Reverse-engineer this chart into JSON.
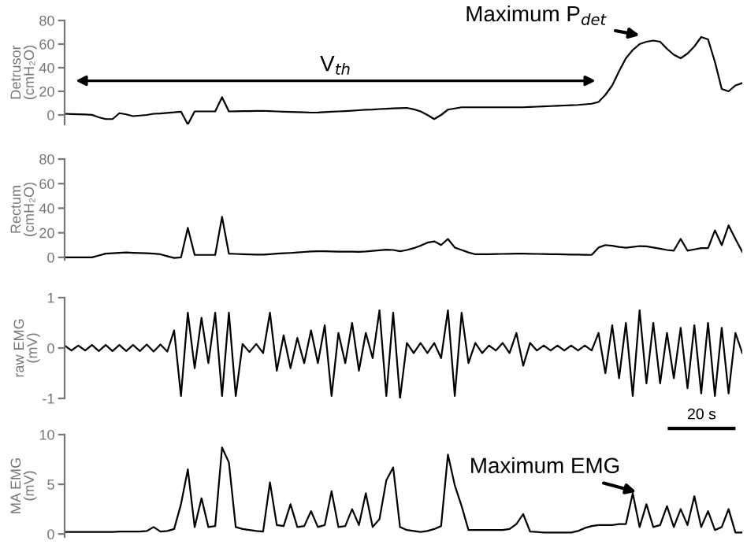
{
  "chart_data": [
    {
      "type": "line",
      "ylabel": "Detrusor\n(cmH₂O)",
      "ylim": [
        -8,
        80
      ],
      "yticks": [
        0,
        20,
        40,
        60,
        80
      ],
      "tick_labels": "y",
      "grid": false,
      "legend": false,
      "categories": [
        null,
        null,
        null,
        null,
        null,
        null,
        null,
        null,
        null,
        null,
        null,
        null,
        null,
        null,
        null,
        null,
        null,
        null,
        null,
        null,
        null,
        null,
        null,
        null,
        null,
        null,
        null,
        null,
        null,
        null,
        null,
        null,
        null,
        null,
        null,
        null,
        null,
        null,
        null,
        null,
        null,
        null,
        null,
        null,
        null,
        null,
        null,
        null,
        null,
        null,
        null,
        null,
        null,
        null,
        null,
        null,
        null,
        null,
        null,
        null,
        null,
        null,
        null,
        null,
        null,
        null,
        null,
        null,
        null,
        null,
        null,
        null,
        null,
        null,
        null,
        null,
        null,
        null,
        null,
        null,
        null,
        null,
        null,
        null,
        null,
        null,
        null,
        null,
        null,
        null,
        null,
        null,
        null,
        null,
        null,
        null,
        null,
        null,
        null,
        null
      ],
      "series": [
        {
          "color": "#000000",
          "values": [
            1,
            0.8,
            0.6,
            0.4,
            0.1,
            -2,
            -3.5,
            -3.5,
            1.5,
            0.5,
            -1,
            -0.5,
            0,
            1,
            1.2,
            1.8,
            2.2,
            2.8,
            -8,
            3,
            3,
            3,
            3,
            15,
            3,
            3.1,
            3.2,
            3.3,
            3.4,
            3.5,
            3.2,
            3,
            2.8,
            2.6,
            2.4,
            2.2,
            2,
            2.1,
            2.4,
            2.7,
            3,
            3.3,
            3.6,
            4,
            4.4,
            4.6,
            5,
            5.3,
            5.6,
            5.8,
            6,
            4.8,
            3,
            0,
            -3.5,
            0,
            4.5,
            5.5,
            6.5,
            6.5,
            6.5,
            6.5,
            6.5,
            6.5,
            6.5,
            6.5,
            6.5,
            6.5,
            6.7,
            7,
            7.3,
            7.5,
            7.8,
            8,
            8.3,
            8.5,
            9,
            9.5,
            11,
            17,
            25,
            37,
            48,
            55,
            60,
            62,
            63,
            62,
            56,
            51,
            48,
            52,
            58,
            66,
            64,
            45,
            22,
            20,
            25,
            27
          ]
        }
      ],
      "annotations": [
        "Maximum P$_{det}$",
        "V$_{th}$"
      ]
    },
    {
      "type": "line",
      "ylabel": "Rectum\n(cmH₂O)",
      "ylim": [
        -2,
        80
      ],
      "yticks": [
        0,
        20,
        40,
        60,
        80
      ],
      "tick_labels": "y",
      "grid": false,
      "legend": false,
      "categories": [
        null,
        null,
        null,
        null,
        null,
        null,
        null,
        null,
        null,
        null,
        null,
        null,
        null,
        null,
        null,
        null,
        null,
        null,
        null,
        null,
        null,
        null,
        null,
        null,
        null,
        null,
        null,
        null,
        null,
        null,
        null,
        null,
        null,
        null,
        null,
        null,
        null,
        null,
        null,
        null,
        null,
        null,
        null,
        null,
        null,
        null,
        null,
        null,
        null,
        null,
        null,
        null,
        null,
        null,
        null,
        null,
        null,
        null,
        null,
        null,
        null,
        null,
        null,
        null,
        null,
        null,
        null,
        null,
        null,
        null,
        null,
        null,
        null,
        null,
        null,
        null,
        null,
        null,
        null,
        null,
        null,
        null,
        null,
        null,
        null,
        null,
        null,
        null,
        null,
        null,
        null,
        null,
        null,
        null,
        null,
        null,
        null,
        null,
        null,
        null
      ],
      "series": [
        {
          "color": "#000000",
          "values": [
            0,
            0,
            0,
            0,
            0,
            1.5,
            3,
            3.3,
            3.7,
            4,
            3.7,
            3.5,
            3.3,
            3.1,
            2.5,
            1,
            -0.5,
            0,
            24,
            2,
            2,
            2,
            2,
            33,
            3,
            2.8,
            2.6,
            2.4,
            2.2,
            2.2,
            2.6,
            3,
            3.3,
            3.6,
            4,
            4.4,
            4.8,
            5,
            4.9,
            4.8,
            4.7,
            4.6,
            4.6,
            4.5,
            4.8,
            5.3,
            5.8,
            6.2,
            6,
            5,
            6,
            7.5,
            9.5,
            12,
            13,
            10,
            15,
            8,
            6,
            4,
            2.5,
            2.5,
            2.6,
            2.7,
            2.8,
            2.9,
            3,
            3,
            2.9,
            2.8,
            2.7,
            2.6,
            2.5,
            2.4,
            2.3,
            2.2,
            2.1,
            2,
            8,
            10,
            9.5,
            8.5,
            7.8,
            8.5,
            9.2,
            9,
            8,
            7,
            6,
            5.5,
            15,
            5.5,
            6.5,
            7.5,
            7.5,
            22,
            10,
            26,
            15,
            4.5
          ]
        }
      ]
    },
    {
      "type": "line",
      "ylabel": "raw EMG\n(mV)",
      "ylim": [
        -1,
        1
      ],
      "yticks": [
        -1,
        0,
        1
      ],
      "tick_labels": "y",
      "grid": false,
      "legend": false,
      "categories": [
        null,
        null,
        null,
        null,
        null,
        null,
        null,
        null,
        null,
        null,
        null,
        null,
        null,
        null,
        null,
        null,
        null,
        null,
        null,
        null,
        null,
        null,
        null,
        null,
        null,
        null,
        null,
        null,
        null,
        null,
        null,
        null,
        null,
        null,
        null,
        null,
        null,
        null,
        null,
        null,
        null,
        null,
        null,
        null,
        null,
        null,
        null,
        null,
        null,
        null,
        null,
        null,
        null,
        null,
        null,
        null,
        null,
        null,
        null,
        null,
        null,
        null,
        null,
        null,
        null,
        null,
        null,
        null,
        null,
        null,
        null,
        null,
        null,
        null,
        null,
        null,
        null,
        null,
        null,
        null,
        null,
        null,
        null,
        null,
        null,
        null,
        null,
        null,
        null,
        null,
        null,
        null,
        null,
        null,
        null,
        null,
        null,
        null,
        null,
        null
      ],
      "series": [
        {
          "color": "#000000",
          "values": [
            0.05,
            -0.05,
            0.05,
            -0.05,
            0.06,
            -0.06,
            0.06,
            -0.06,
            0.06,
            -0.06,
            0.06,
            -0.06,
            0.07,
            -0.07,
            0.07,
            -0.07,
            0.35,
            -0.95,
            0.7,
            -0.4,
            0.6,
            -0.3,
            0.7,
            -0.95,
            0.7,
            -0.95,
            0.08,
            -0.08,
            0.08,
            -0.1,
            0.7,
            -0.45,
            0.25,
            -0.4,
            0.2,
            -0.3,
            0.35,
            -0.3,
            0.45,
            -0.95,
            0.3,
            -0.3,
            0.5,
            -0.45,
            0.3,
            -0.2,
            0.75,
            -0.95,
            0.7,
            -1.0,
            0.1,
            -0.1,
            0.1,
            -0.1,
            0.1,
            -0.2,
            0.75,
            -0.95,
            0.7,
            -0.3,
            0.1,
            -0.1,
            0.05,
            -0.05,
            0.1,
            -0.1,
            0.3,
            -0.35,
            0.1,
            -0.05,
            0.05,
            -0.05,
            0.05,
            -0.05,
            0.05,
            -0.05,
            0.05,
            -0.05,
            0.3,
            -0.5,
            0.45,
            -0.6,
            0.5,
            -0.95,
            0.75,
            -0.7,
            0.5,
            -0.7,
            0.3,
            -0.6,
            0.4,
            -0.8,
            0.45,
            -0.9,
            0.5,
            -0.95,
            0.4,
            -0.9,
            0.3,
            -0.1
          ]
        }
      ]
    },
    {
      "type": "line",
      "ylabel": "MA EMG\n(mV)",
      "ylim": [
        -0.3,
        10
      ],
      "yticks": [
        0,
        5,
        10
      ],
      "tick_labels": "y",
      "grid": false,
      "legend": false,
      "categories": [
        null,
        null,
        null,
        null,
        null,
        null,
        null,
        null,
        null,
        null,
        null,
        null,
        null,
        null,
        null,
        null,
        null,
        null,
        null,
        null,
        null,
        null,
        null,
        null,
        null,
        null,
        null,
        null,
        null,
        null,
        null,
        null,
        null,
        null,
        null,
        null,
        null,
        null,
        null,
        null,
        null,
        null,
        null,
        null,
        null,
        null,
        null,
        null,
        null,
        null,
        null,
        null,
        null,
        null,
        null,
        null,
        null,
        null,
        null,
        null,
        null,
        null,
        null,
        null,
        null,
        null,
        null,
        null,
        null,
        null,
        null,
        null,
        null,
        null,
        null,
        null,
        null,
        null,
        null,
        null,
        null,
        null,
        null,
        null,
        null,
        null,
        null,
        null,
        null,
        null,
        null,
        null,
        null,
        null,
        null,
        null,
        null,
        null,
        null,
        null
      ],
      "series": [
        {
          "color": "#000000",
          "values": [
            0.2,
            0.2,
            0.2,
            0.2,
            0.2,
            0.2,
            0.2,
            0.2,
            0.25,
            0.25,
            0.25,
            0.25,
            0.3,
            0.7,
            0.25,
            0.3,
            0.5,
            3.0,
            6.5,
            0.7,
            3.6,
            0.7,
            0.8,
            8.7,
            7.2,
            0.7,
            0.5,
            0.4,
            0.3,
            0.25,
            5.2,
            0.9,
            0.8,
            3.0,
            0.7,
            0.8,
            2.3,
            0.7,
            0.9,
            4.3,
            0.7,
            0.8,
            2.5,
            0.9,
            4.1,
            0.7,
            1.5,
            5.4,
            6.7,
            0.7,
            0.4,
            0.3,
            0.2,
            0.3,
            0.5,
            0.8,
            8.0,
            4.9,
            2.8,
            0.4,
            0.4,
            0.4,
            0.4,
            0.4,
            0.4,
            0.5,
            1.0,
            2.0,
            0.25,
            0.2,
            0.15,
            0.15,
            0.15,
            0.15,
            0.15,
            0.3,
            0.6,
            0.8,
            0.9,
            0.9,
            0.9,
            1.0,
            1.0,
            4.1,
            0.7,
            3.0,
            0.7,
            0.9,
            2.8,
            0.7,
            2.5,
            0.9,
            3.8,
            0.7,
            2.3,
            0.4,
            0.7,
            2.5,
            0.15,
            0.15
          ]
        }
      ],
      "annotations": [
        "Maximum EMG",
        "20 s"
      ]
    }
  ]
}
